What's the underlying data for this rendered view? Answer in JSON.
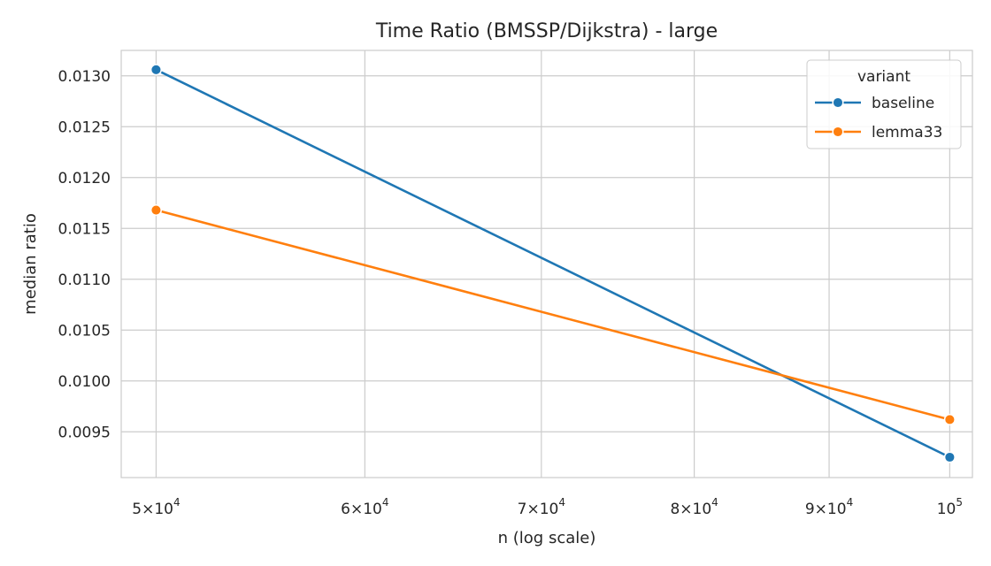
{
  "chart_data": {
    "type": "line",
    "title": "Time Ratio (BMSSP/Dijkstra) - large",
    "xlabel": "n (log scale)",
    "ylabel": "median ratio",
    "xscale": "log",
    "xlim": [
      48500,
      102000
    ],
    "ylim": [
      0.00905,
      0.01325
    ],
    "x": [
      50000,
      100000
    ],
    "x_ticks": [
      {
        "value": 50000,
        "mantissa": "5",
        "base": "10",
        "exp": "4"
      },
      {
        "value": 60000,
        "mantissa": "6",
        "base": "10",
        "exp": "4"
      },
      {
        "value": 70000,
        "mantissa": "7",
        "base": "10",
        "exp": "4"
      },
      {
        "value": 80000,
        "mantissa": "8",
        "base": "10",
        "exp": "4"
      },
      {
        "value": 90000,
        "mantissa": "9",
        "base": "10",
        "exp": "4"
      },
      {
        "value": 100000,
        "mantissa": "",
        "base": "10",
        "exp": "5"
      }
    ],
    "y_ticks": [
      0.0095,
      0.01,
      0.0105,
      0.011,
      0.0115,
      0.012,
      0.0125,
      0.013
    ],
    "y_tick_labels": [
      "0.0095",
      "0.0100",
      "0.0105",
      "0.0110",
      "0.0115",
      "0.0120",
      "0.0125",
      "0.0130"
    ],
    "series": [
      {
        "name": "baseline",
        "values": [
          0.01306,
          0.00925
        ],
        "color": "#1f77b4"
      },
      {
        "name": "lemma33",
        "values": [
          0.01168,
          0.00962
        ],
        "color": "#ff7f0e"
      }
    ],
    "legend": {
      "title": "variant",
      "position": "top-right"
    },
    "grid": true
  }
}
